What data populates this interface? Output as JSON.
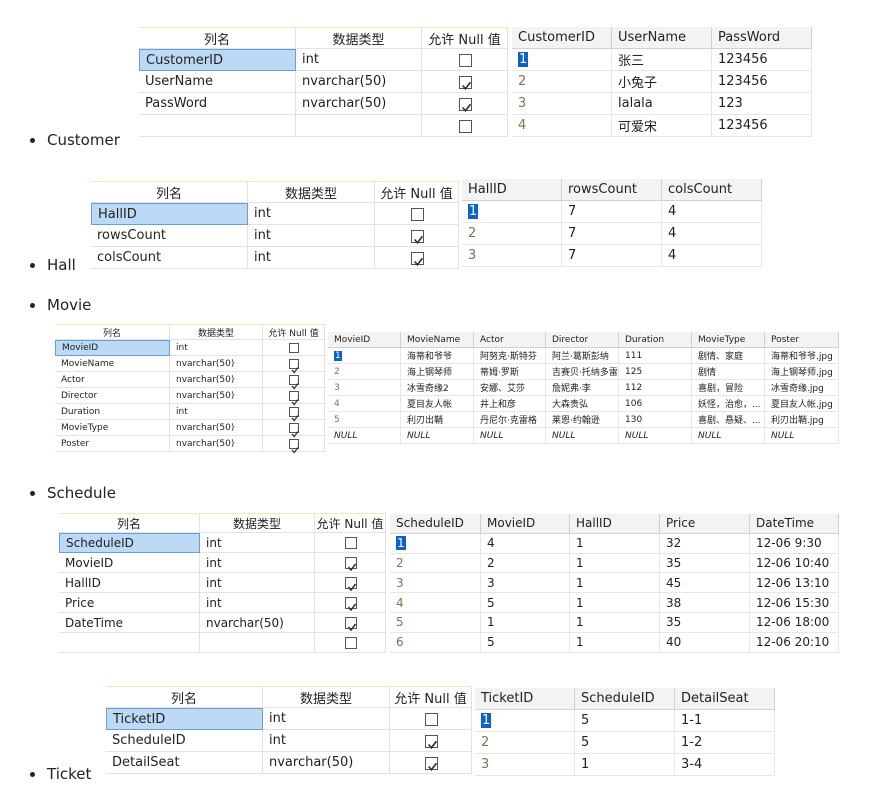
{
  "sections": [
    {
      "label": "Customer",
      "schema": {
        "headers": [
          "列名",
          "数据类型",
          "允许 Null 值"
        ],
        "rows": [
          [
            "CustomerID",
            "int",
            false
          ],
          [
            "UserName",
            "nvarchar(50)",
            true
          ],
          [
            "PassWord",
            "nvarchar(50)",
            true
          ]
        ],
        "blank_row": true
      },
      "grid": {
        "headers": [
          "CustomerID",
          "UserName",
          "PassWord"
        ],
        "rows": [
          [
            1,
            "张三",
            123456
          ],
          [
            2,
            "小兔子",
            123456
          ],
          [
            3,
            "lalala",
            123
          ],
          [
            4,
            "可爱宋",
            123456
          ]
        ]
      }
    },
    {
      "label": "Hall",
      "schema": {
        "headers": [
          "列名",
          "数据类型",
          "允许 Null 值"
        ],
        "rows": [
          [
            "HallID",
            "int",
            false
          ],
          [
            "rowsCount",
            "int",
            true
          ],
          [
            "colsCount",
            "int",
            true
          ]
        ],
        "blank_row": false
      },
      "grid": {
        "headers": [
          "HallID",
          "rowsCount",
          "colsCount"
        ],
        "rows": [
          [
            1,
            7,
            4
          ],
          [
            2,
            7,
            4
          ],
          [
            3,
            7,
            4
          ]
        ]
      }
    },
    {
      "label": "Movie",
      "schema": {
        "headers": [
          "列名",
          "数据类型",
          "允许 Null 值"
        ],
        "rows": [
          [
            "MovieID",
            "int",
            false
          ],
          [
            "MovieName",
            "nvarchar(50)",
            true
          ],
          [
            "Actor",
            "nvarchar(50)",
            true
          ],
          [
            "Director",
            "nvarchar(50)",
            true
          ],
          [
            "Duration",
            "int",
            true
          ],
          [
            "MovieType",
            "nvarchar(50)",
            true
          ],
          [
            "Poster",
            "nvarchar(50)",
            true
          ]
        ],
        "blank_row": false
      },
      "grid": {
        "headers": [
          "MovieID",
          "MovieName",
          "Actor",
          "Director",
          "Duration",
          "MovieType",
          "Poster"
        ],
        "rows": [
          [
            1,
            "海蒂和爷爷",
            "阿努克·斯特芬",
            "阿兰·葛斯彭纳",
            111,
            "剧情、家庭",
            "海蒂和爷爷.jpg"
          ],
          [
            2,
            "海上钢琴师",
            "蒂姆·罗斯",
            "吉赛贝·托纳多雷",
            125,
            "剧情",
            "海上钢琴师.jpg"
          ],
          [
            3,
            "冰雪奇缘2",
            "安娜、艾莎",
            "詹妮弗·李",
            112,
            "喜剧，冒险",
            "冰雪奇缘.jpg"
          ],
          [
            4,
            "夏目友人帐",
            "井上和彦",
            "大森贵弘",
            106,
            "妖怪，治愈，...",
            "夏目友人帐.jpg"
          ],
          [
            5,
            "利刃出鞘",
            "丹尼尔·克雷格",
            "莱恩·约翰逊",
            130,
            "喜剧、悬疑、...",
            "利刃出鞘.jpg"
          ],
          [
            "NULL",
            "NULL",
            "NULL",
            "NULL",
            "NULL",
            "NULL",
            "NULL"
          ]
        ]
      }
    },
    {
      "label": "Schedule",
      "schema": {
        "headers": [
          "列名",
          "数据类型",
          "允许 Null 值"
        ],
        "rows": [
          [
            "ScheduleID",
            "int",
            false
          ],
          [
            "MovieID",
            "int",
            true
          ],
          [
            "HallID",
            "int",
            true
          ],
          [
            "Price",
            "int",
            true
          ],
          [
            "DateTime",
            "nvarchar(50)",
            true
          ]
        ],
        "blank_row": true
      },
      "grid": {
        "headers": [
          "ScheduleID",
          "MovieID",
          "HallID",
          "Price",
          "DateTime"
        ],
        "rows": [
          [
            1,
            4,
            1,
            32,
            "12-06 9:30"
          ],
          [
            2,
            2,
            1,
            35,
            "12-06 10:40"
          ],
          [
            3,
            3,
            1,
            45,
            "12-06 13:10"
          ],
          [
            4,
            5,
            1,
            38,
            "12-06 15:30"
          ],
          [
            5,
            1,
            1,
            35,
            "12-06  18:00"
          ],
          [
            6,
            5,
            1,
            40,
            "12-06 20:10"
          ]
        ]
      }
    },
    {
      "label": "Ticket",
      "schema": {
        "headers": [
          "列名",
          "数据类型",
          "允许 Null 值"
        ],
        "rows": [
          [
            "TicketID",
            "int",
            false
          ],
          [
            "ScheduleID",
            "int",
            true
          ],
          [
            "DetailSeat",
            "nvarchar(50)",
            true
          ]
        ],
        "blank_row": false
      },
      "grid": {
        "headers": [
          "TicketID",
          "ScheduleID",
          "DetailSeat"
        ],
        "rows": [
          [
            1,
            5,
            "1-1"
          ],
          [
            2,
            5,
            "1-2"
          ],
          [
            3,
            1,
            "3-4"
          ]
        ]
      }
    }
  ]
}
